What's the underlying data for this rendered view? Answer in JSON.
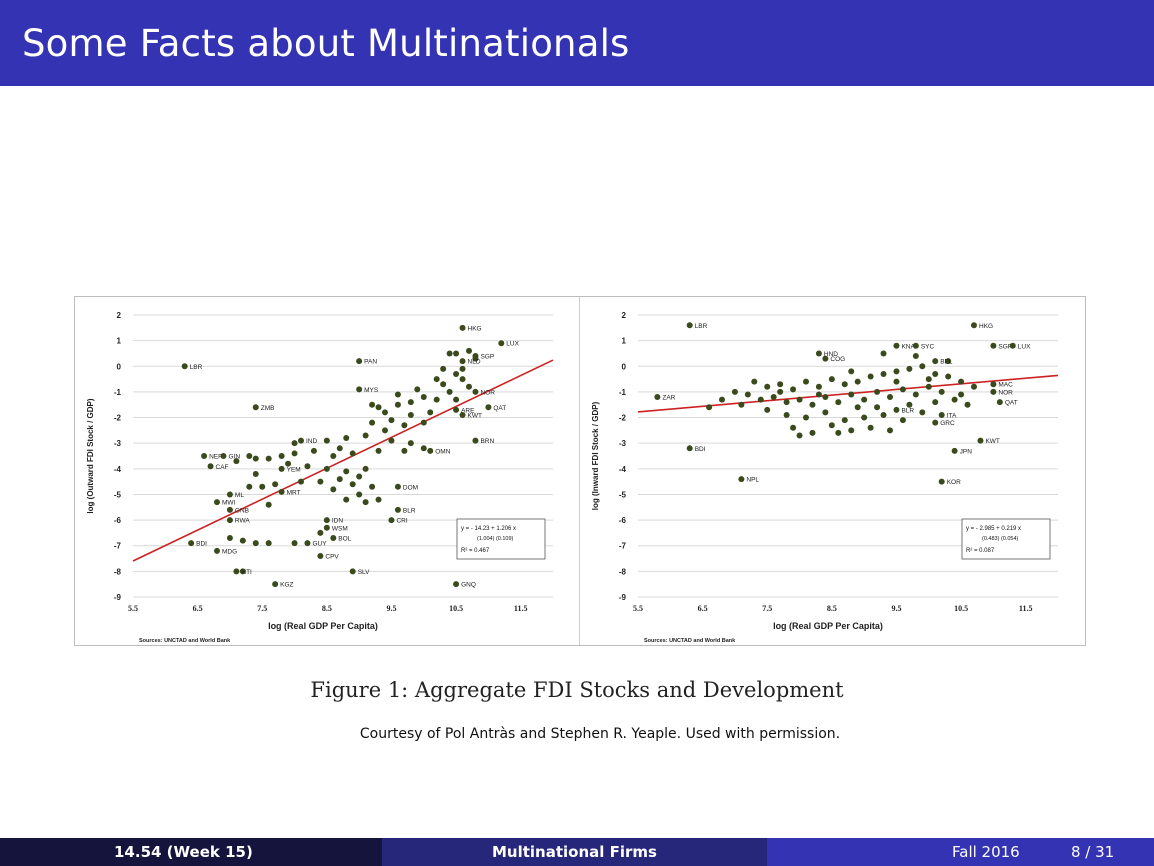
{
  "slide": {
    "title": "Some Facts about Multinationals",
    "caption": "Figure 1: Aggregate FDI Stocks and Development",
    "credit": "Courtesy of Pol Antràs and Stephen R. Yeaple. Used with permission."
  },
  "footer": {
    "course": "14.54  (Week 15)",
    "topic": "Multinational Firms",
    "date": "Fall 2016",
    "page": "8 / 31"
  },
  "colors": {
    "accent": "#3333b3",
    "point": "#3b4a1c",
    "fit": "#cc2222"
  },
  "chart_data": [
    {
      "type": "scatter",
      "xlabel": "log (Real GDP Per Capita)",
      "ylabel": "log (Outward FDI Stock / GDP)",
      "xlim": [
        5.5,
        12.0
      ],
      "ylim": [
        -9,
        2
      ],
      "xticks": [
        "5.5",
        "6.5",
        "7.5",
        "8.5",
        "9.5",
        "10.5",
        "11.5"
      ],
      "yticks": [
        "2",
        "1",
        "0",
        "-1",
        "-2",
        "-3",
        "-4",
        "-5",
        "-6",
        "-7",
        "-8",
        "-9"
      ],
      "grid": true,
      "source": "Sources: UNCTAD and World Bank",
      "regression": {
        "intercept": -14.23,
        "slope": 1.206,
        "line1": "y = - 14.23 + 1.206 x",
        "line2": "(1.004)   (0.109)",
        "r2": "R² = 0.467"
      },
      "labeled_points": [
        {
          "label": "HKG",
          "x": 10.6,
          "y": 1.5
        },
        {
          "label": "LUX",
          "x": 11.2,
          "y": 0.9
        },
        {
          "label": "NLD",
          "x": 10.6,
          "y": 0.2
        },
        {
          "label": "SGP",
          "x": 10.8,
          "y": 0.4
        },
        {
          "label": "PAN",
          "x": 9.0,
          "y": 0.2
        },
        {
          "label": "LBR",
          "x": 6.3,
          "y": 0.0
        },
        {
          "label": "MYS",
          "x": 9.0,
          "y": -0.9
        },
        {
          "label": "NOR",
          "x": 10.8,
          "y": -1.0
        },
        {
          "label": "ZMB",
          "x": 7.4,
          "y": -1.6
        },
        {
          "label": "QAT",
          "x": 11.0,
          "y": -1.6
        },
        {
          "label": "KWT",
          "x": 10.6,
          "y": -1.9
        },
        {
          "label": "ARE",
          "x": 10.5,
          "y": -1.7
        },
        {
          "label": "IND",
          "x": 8.1,
          "y": -2.9
        },
        {
          "label": "BRN",
          "x": 10.8,
          "y": -2.9
        },
        {
          "label": "OMN",
          "x": 10.1,
          "y": -3.3
        },
        {
          "label": "NER",
          "x": 6.6,
          "y": -3.5
        },
        {
          "label": "GIN",
          "x": 6.9,
          "y": -3.5
        },
        {
          "label": "CAF",
          "x": 6.7,
          "y": -3.9
        },
        {
          "label": "YEM",
          "x": 7.8,
          "y": -4.0
        },
        {
          "label": "ML",
          "x": 7.0,
          "y": -5.0
        },
        {
          "label": "MWI",
          "x": 6.8,
          "y": -5.3
        },
        {
          "label": "MRT",
          "x": 7.8,
          "y": -4.9
        },
        {
          "label": "DOM",
          "x": 9.6,
          "y": -4.7
        },
        {
          "label": "GNB",
          "x": 7.0,
          "y": -5.6
        },
        {
          "label": "BLR",
          "x": 9.6,
          "y": -5.6
        },
        {
          "label": "RWA",
          "x": 7.0,
          "y": -6.0
        },
        {
          "label": "IDN",
          "x": 8.5,
          "y": -6.0
        },
        {
          "label": "CRI",
          "x": 9.5,
          "y": -6.0
        },
        {
          "label": "WSM",
          "x": 8.5,
          "y": -6.3
        },
        {
          "label": "BDI",
          "x": 6.4,
          "y": -6.9
        },
        {
          "label": "GUY",
          "x": 8.2,
          "y": -6.9
        },
        {
          "label": "BOL",
          "x": 8.6,
          "y": -6.7
        },
        {
          "label": "MDG",
          "x": 6.8,
          "y": -7.2
        },
        {
          "label": "CPV",
          "x": 8.4,
          "y": -7.4
        },
        {
          "label": "HTI",
          "x": 7.1,
          "y": -8.0
        },
        {
          "label": "SLV",
          "x": 8.9,
          "y": -8.0
        },
        {
          "label": "KGZ",
          "x": 7.7,
          "y": -8.5
        },
        {
          "label": "GNQ",
          "x": 10.5,
          "y": -8.5
        }
      ],
      "cluster_points": [
        [
          10.4,
          0.5
        ],
        [
          10.5,
          0.5
        ],
        [
          10.7,
          0.6
        ],
        [
          10.8,
          0.3
        ],
        [
          10.3,
          -0.1
        ],
        [
          10.5,
          -0.3
        ],
        [
          10.6,
          -0.5
        ],
        [
          10.3,
          -0.7
        ],
        [
          10.7,
          -0.8
        ],
        [
          10.4,
          -1.0
        ],
        [
          10.2,
          -1.3
        ],
        [
          10.5,
          -1.3
        ],
        [
          10.0,
          -1.2
        ],
        [
          9.8,
          -1.4
        ],
        [
          9.6,
          -1.5
        ],
        [
          9.3,
          -1.6
        ],
        [
          9.2,
          -1.5
        ],
        [
          9.4,
          -1.8
        ],
        [
          9.8,
          -1.9
        ],
        [
          10.1,
          -1.8
        ],
        [
          10.0,
          -2.2
        ],
        [
          9.7,
          -2.3
        ],
        [
          9.4,
          -2.5
        ],
        [
          9.1,
          -2.7
        ],
        [
          8.8,
          -2.8
        ],
        [
          8.5,
          -2.9
        ],
        [
          9.5,
          -2.9
        ],
        [
          9.8,
          -3.0
        ],
        [
          10.0,
          -3.2
        ],
        [
          9.7,
          -3.3
        ],
        [
          9.3,
          -3.3
        ],
        [
          8.9,
          -3.4
        ],
        [
          8.6,
          -3.5
        ],
        [
          8.3,
          -3.3
        ],
        [
          8.0,
          -3.4
        ],
        [
          7.8,
          -3.5
        ],
        [
          7.6,
          -3.6
        ],
        [
          7.4,
          -3.6
        ],
        [
          7.3,
          -3.5
        ],
        [
          7.1,
          -3.7
        ],
        [
          7.9,
          -3.8
        ],
        [
          8.2,
          -3.9
        ],
        [
          8.5,
          -4.0
        ],
        [
          8.8,
          -4.1
        ],
        [
          9.1,
          -4.0
        ],
        [
          9.0,
          -4.3
        ],
        [
          8.7,
          -4.4
        ],
        [
          8.4,
          -4.5
        ],
        [
          8.1,
          -4.5
        ],
        [
          7.7,
          -4.6
        ],
        [
          7.5,
          -4.7
        ],
        [
          7.3,
          -4.7
        ],
        [
          8.6,
          -4.8
        ],
        [
          8.9,
          -4.6
        ],
        [
          9.2,
          -4.7
        ],
        [
          9.0,
          -5.0
        ],
        [
          9.3,
          -5.2
        ],
        [
          9.1,
          -5.3
        ],
        [
          8.8,
          -5.2
        ],
        [
          7.6,
          -5.4
        ],
        [
          10.6,
          -0.1
        ],
        [
          10.2,
          -0.5
        ],
        [
          9.9,
          -0.9
        ],
        [
          9.6,
          -1.1
        ],
        [
          9.5,
          -2.1
        ],
        [
          9.2,
          -2.2
        ],
        [
          8.7,
          -3.2
        ],
        [
          8.0,
          -3.0
        ],
        [
          7.4,
          -4.2
        ],
        [
          7.2,
          -6.8
        ],
        [
          7.4,
          -6.9
        ],
        [
          7.6,
          -6.9
        ],
        [
          7.0,
          -6.7
        ],
        [
          7.2,
          -8.0
        ],
        [
          8.0,
          -6.9
        ],
        [
          8.4,
          -6.5
        ]
      ]
    },
    {
      "type": "scatter",
      "xlabel": "log (Real GDP Per Capita)",
      "ylabel": "log (Inward FDI Stock / GDP)",
      "xlim": [
        5.5,
        12.0
      ],
      "ylim": [
        -9,
        2
      ],
      "xticks": [
        "5.5",
        "6.5",
        "7.5",
        "8.5",
        "9.5",
        "10.5",
        "11.5"
      ],
      "yticks": [
        "2",
        "1",
        "0",
        "-1",
        "-2",
        "-3",
        "-4",
        "-5",
        "-6",
        "-7",
        "-8",
        "-9"
      ],
      "grid": true,
      "source": "Sources: UNCTAD and World Bank",
      "regression": {
        "intercept": -2.985,
        "slope": 0.219,
        "line1": "y = - 2.985 + 0.219 x",
        "line2": "(0.483)   (0.054)",
        "r2": "R² = 0.087"
      },
      "labeled_points": [
        {
          "label": "LBR",
          "x": 6.3,
          "y": 1.6
        },
        {
          "label": "HKG",
          "x": 10.7,
          "y": 1.6
        },
        {
          "label": "KNA",
          "x": 9.5,
          "y": 0.8
        },
        {
          "label": "SYC",
          "x": 9.8,
          "y": 0.8
        },
        {
          "label": "SGP",
          "x": 11.0,
          "y": 0.8
        },
        {
          "label": "LUX",
          "x": 11.3,
          "y": 0.8
        },
        {
          "label": "HND",
          "x": 8.3,
          "y": 0.5
        },
        {
          "label": "COG",
          "x": 8.4,
          "y": 0.3
        },
        {
          "label": "BEL",
          "x": 10.1,
          "y": 0.2
        },
        {
          "label": "ZAR",
          "x": 5.8,
          "y": -1.2
        },
        {
          "label": "MAC",
          "x": 11.0,
          "y": -0.7
        },
        {
          "label": "NOR",
          "x": 11.0,
          "y": -1.0
        },
        {
          "label": "QAT",
          "x": 11.1,
          "y": -1.4
        },
        {
          "label": "BLR",
          "x": 9.5,
          "y": -1.7
        },
        {
          "label": "ITA",
          "x": 10.2,
          "y": -1.9
        },
        {
          "label": "GRC",
          "x": 10.1,
          "y": -2.2
        },
        {
          "label": "BDI",
          "x": 6.3,
          "y": -3.2
        },
        {
          "label": "KWT",
          "x": 10.8,
          "y": -2.9
        },
        {
          "label": "JPN",
          "x": 10.4,
          "y": -3.3
        },
        {
          "label": "NPL",
          "x": 7.1,
          "y": -4.4
        },
        {
          "label": "KOR",
          "x": 10.2,
          "y": -4.5
        }
      ],
      "cluster_points": [
        [
          7.3,
          -0.6
        ],
        [
          7.5,
          -0.8
        ],
        [
          7.7,
          -0.7
        ],
        [
          7.9,
          -0.9
        ],
        [
          8.1,
          -0.6
        ],
        [
          8.3,
          -0.8
        ],
        [
          8.5,
          -0.5
        ],
        [
          8.7,
          -0.7
        ],
        [
          8.9,
          -0.6
        ],
        [
          9.1,
          -0.4
        ],
        [
          9.3,
          -0.3
        ],
        [
          9.5,
          -0.2
        ],
        [
          9.7,
          -0.1
        ],
        [
          9.9,
          0.0
        ],
        [
          10.1,
          -0.3
        ],
        [
          10.3,
          -0.4
        ],
        [
          10.5,
          -0.6
        ],
        [
          10.7,
          -0.8
        ],
        [
          7.2,
          -1.1
        ],
        [
          7.4,
          -1.3
        ],
        [
          7.6,
          -1.2
        ],
        [
          7.8,
          -1.4
        ],
        [
          8.0,
          -1.3
        ],
        [
          8.2,
          -1.5
        ],
        [
          8.4,
          -1.2
        ],
        [
          8.6,
          -1.4
        ],
        [
          8.8,
          -1.1
        ],
        [
          9.0,
          -1.3
        ],
        [
          9.2,
          -1.0
        ],
        [
          9.4,
          -1.2
        ],
        [
          9.6,
          -0.9
        ],
        [
          9.8,
          -1.1
        ],
        [
          10.0,
          -0.8
        ],
        [
          10.2,
          -1.0
        ],
        [
          10.4,
          -1.3
        ],
        [
          10.6,
          -1.5
        ],
        [
          7.5,
          -1.7
        ],
        [
          7.8,
          -1.9
        ],
        [
          8.1,
          -2.0
        ],
        [
          8.4,
          -1.8
        ],
        [
          8.7,
          -2.1
        ],
        [
          9.0,
          -2.0
        ],
        [
          9.3,
          -1.9
        ],
        [
          9.6,
          -2.1
        ],
        [
          9.9,
          -1.8
        ],
        [
          7.9,
          -2.4
        ],
        [
          8.2,
          -2.6
        ],
        [
          8.5,
          -2.3
        ],
        [
          8.8,
          -2.5
        ],
        [
          9.1,
          -2.4
        ],
        [
          9.4,
          -2.5
        ],
        [
          7.0,
          -1.0
        ],
        [
          6.8,
          -1.3
        ],
        [
          6.6,
          -1.6
        ],
        [
          7.1,
          -1.5
        ],
        [
          8.0,
          -2.7
        ],
        [
          9.7,
          -1.5
        ],
        [
          10.1,
          -1.4
        ],
        [
          10.5,
          -1.1
        ],
        [
          8.9,
          -1.6
        ],
        [
          9.2,
          -1.6
        ],
        [
          8.3,
          -1.1
        ],
        [
          7.7,
          -1.0
        ],
        [
          9.5,
          -0.6
        ],
        [
          10.0,
          -0.5
        ],
        [
          10.3,
          0.2
        ],
        [
          9.8,
          0.4
        ],
        [
          9.3,
          0.5
        ],
        [
          8.8,
          -0.2
        ],
        [
          8.6,
          -2.6
        ]
      ]
    }
  ]
}
